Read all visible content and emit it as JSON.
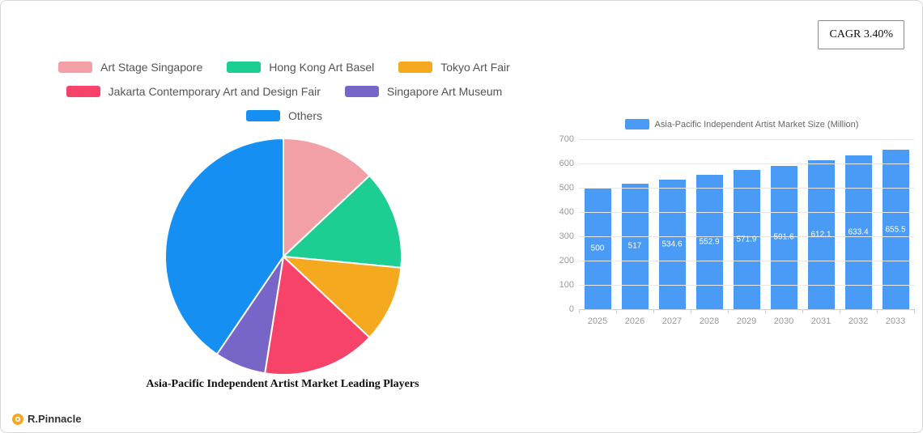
{
  "page": {
    "cagr_label": "CAGR 3.40%",
    "brand": "R.Pinnacle",
    "brand_color": "#F5A623"
  },
  "chart_data": [
    {
      "type": "pie",
      "title": "Asia-Pacific Independent Artist Market Leading Players",
      "legend_position": "top",
      "slices": [
        {
          "label": "Art Stage Singapore",
          "value": 13,
          "color": "#F2A0A6"
        },
        {
          "label": "Hong Kong Art Basel",
          "value": 13.5,
          "color": "#1CCE92"
        },
        {
          "label": "Tokyo Art Fair",
          "value": 10.5,
          "color": "#F5A91F"
        },
        {
          "label": "Jakarta Contemporary Art and Design Fair",
          "value": 15.5,
          "color": "#F7426A"
        },
        {
          "label": "Singapore Art Museum",
          "value": 7,
          "color": "#7766C8"
        },
        {
          "label": "Others",
          "value": 40.5,
          "color": "#1590F2"
        }
      ]
    },
    {
      "type": "bar",
      "legend": "Asia-Pacific Independent Artist Market Size (Million)",
      "categories": [
        "2025",
        "2026",
        "2027",
        "2028",
        "2029",
        "2030",
        "2031",
        "2032",
        "2033"
      ],
      "values": [
        500,
        517,
        534.6,
        552.9,
        571.9,
        591.6,
        612.1,
        633.4,
        655.5
      ],
      "labels": [
        "500",
        "517",
        "534.6",
        "552.9",
        "571.9",
        "591.6",
        "612.1",
        "633.4",
        "655.5"
      ],
      "bar_color": "#4A9BF5",
      "ylim": [
        0,
        700
      ],
      "yticks": [
        0,
        100,
        200,
        300,
        400,
        500,
        600,
        700
      ],
      "grid": true,
      "legend_position": "top"
    }
  ]
}
